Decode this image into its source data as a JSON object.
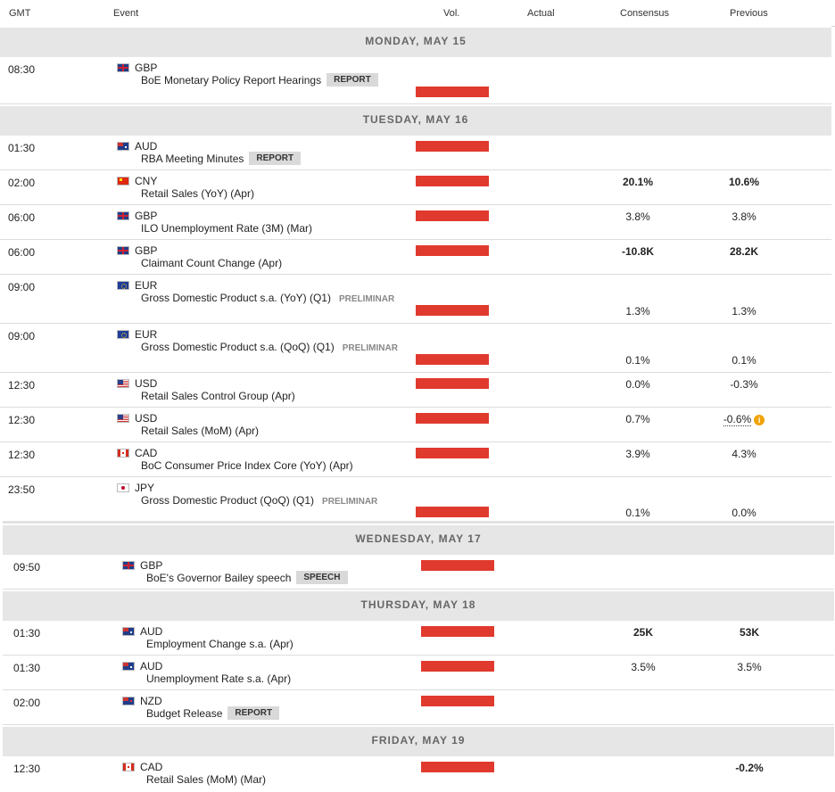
{
  "header": {
    "gmt": "GMT",
    "event": "Event",
    "vol": "Vol.",
    "actual": "Actual",
    "consensus": "Consensus",
    "previous": "Previous"
  },
  "days": [
    {
      "label": "MONDAY, MAY 15",
      "events": [
        {
          "time": "08:30",
          "currency": "GBP",
          "flag": "uk-flag-icon",
          "event": "BoE Monetary Policy Report Hearings",
          "badge": "REPORT",
          "volatility": "high",
          "actual": "",
          "consensus": "",
          "previous": ""
        }
      ]
    },
    {
      "label": "TUESDAY, MAY 16",
      "events": [
        {
          "time": "01:30",
          "currency": "AUD",
          "flag": "australia-flag-icon",
          "event": "RBA Meeting Minutes",
          "badge": "REPORT",
          "volatility": "high",
          "actual": "",
          "consensus": "",
          "previous": ""
        },
        {
          "time": "02:00",
          "currency": "CNY",
          "flag": "china-flag-icon",
          "event": "Retail Sales (YoY) (Apr)",
          "volatility": "high",
          "actual": "",
          "consensus": "20.1%",
          "previous": "10.6%"
        },
        {
          "time": "06:00",
          "currency": "GBP",
          "flag": "uk-flag-icon",
          "event": "ILO Unemployment Rate (3M) (Mar)",
          "volatility": "high",
          "actual": "",
          "consensus": "3.8%",
          "previous": "3.8%"
        },
        {
          "time": "06:00",
          "currency": "GBP",
          "flag": "uk-flag-icon",
          "event": "Claimant Count Change (Apr)",
          "volatility": "high",
          "actual": "",
          "consensus": "-10.8K",
          "previous": "28.2K"
        },
        {
          "time": "09:00",
          "currency": "EUR",
          "flag": "eu-flag-icon",
          "event": "Gross Domestic Product s.a. (YoY) (Q1)",
          "tag": "PRELIMINAR",
          "volatility": "high",
          "actual": "",
          "consensus": "1.3%",
          "previous": "1.3%"
        },
        {
          "time": "09:00",
          "currency": "EUR",
          "flag": "eu-flag-icon",
          "event": "Gross Domestic Product s.a. (QoQ) (Q1)",
          "tag": "PRELIMINAR",
          "volatility": "high",
          "actual": "",
          "consensus": "0.1%",
          "previous": "0.1%"
        },
        {
          "time": "12:30",
          "currency": "USD",
          "flag": "us-flag-icon",
          "event": "Retail Sales Control Group (Apr)",
          "volatility": "high",
          "actual": "",
          "consensus": "0.0%",
          "previous": "-0.3%"
        },
        {
          "time": "12:30",
          "currency": "USD",
          "flag": "us-flag-icon",
          "event": "Retail Sales (MoM) (Apr)",
          "volatility": "high",
          "actual": "",
          "consensus": "0.7%",
          "previous": "-0.6%",
          "revised_icon": "info-icon",
          "revised_glyph": "i"
        },
        {
          "time": "12:30",
          "currency": "CAD",
          "flag": "canada-flag-icon",
          "event": "BoC Consumer Price Index Core (YoY) (Apr)",
          "volatility": "high",
          "actual": "",
          "consensus": "3.9%",
          "previous": "4.3%"
        },
        {
          "time": "23:50",
          "currency": "JPY",
          "flag": "japan-flag-icon",
          "event": "Gross Domestic Product (QoQ) (Q1)",
          "tag": "PRELIMINAR",
          "volatility": "high",
          "actual": "",
          "consensus": "0.1%",
          "previous": "0.0%"
        }
      ]
    },
    {
      "label": "WEDNESDAY, MAY 17",
      "events": [
        {
          "time": "09:50",
          "currency": "GBP",
          "flag": "uk-flag-icon",
          "event": "BoE's Governor Bailey speech",
          "badge": "SPEECH",
          "volatility": "high",
          "actual": "",
          "consensus": "",
          "previous": ""
        }
      ]
    },
    {
      "label": "THURSDAY, MAY 18",
      "events": [
        {
          "time": "01:30",
          "currency": "AUD",
          "flag": "australia-flag-icon",
          "event": "Employment Change s.a. (Apr)",
          "volatility": "high",
          "actual": "",
          "consensus": "25K",
          "previous": "53K"
        },
        {
          "time": "01:30",
          "currency": "AUD",
          "flag": "australia-flag-icon",
          "event": "Unemployment Rate s.a. (Apr)",
          "volatility": "high",
          "actual": "",
          "consensus": "3.5%",
          "previous": "3.5%"
        },
        {
          "time": "02:00",
          "currency": "NZD",
          "flag": "new-zealand-flag-icon",
          "event": "Budget Release",
          "badge": "REPORT",
          "volatility": "high",
          "actual": "",
          "consensus": "",
          "previous": ""
        }
      ]
    },
    {
      "label": "FRIDAY, MAY 19",
      "events": [
        {
          "time": "12:30",
          "currency": "CAD",
          "flag": "canada-flag-icon",
          "event": "Retail Sales (MoM) (Mar)",
          "volatility": "high",
          "actual": "",
          "consensus": "",
          "previous": "-0.2%"
        }
      ]
    }
  ],
  "colors": {
    "volatility_high": "#e03a2e",
    "day_header_bg": "#e6e6e6",
    "revised_icon": "#f0a30a"
  }
}
